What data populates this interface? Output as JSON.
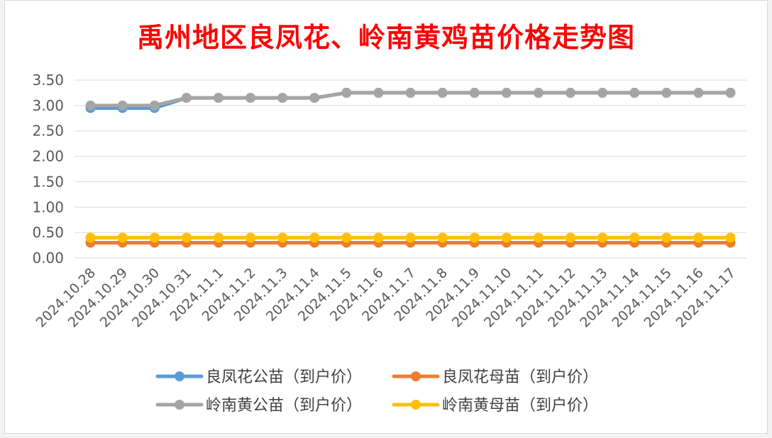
{
  "chart_data": {
    "type": "line",
    "title": "禹州地区良凤花、岭南黄鸡苗价格走势图",
    "x": [
      "2024.10.28",
      "2024.10.29",
      "2024.10.30",
      "2024.10.31",
      "2024.11.1",
      "2024.11.2",
      "2024.11.3",
      "2024.11.4",
      "2024.11.5",
      "2024.11.6",
      "2024.11.7",
      "2024.11.8",
      "2024.11.9",
      "2024.11.10",
      "2024.11.11",
      "2024.11.12",
      "2024.11.13",
      "2024.11.14",
      "2024.11.15",
      "2024.11.16",
      "2024.11.17"
    ],
    "ylim": [
      0,
      3.5
    ],
    "yticks": [
      "0.00",
      "0.50",
      "1.00",
      "1.50",
      "2.00",
      "2.50",
      "3.00",
      "3.50"
    ],
    "grid": true,
    "legend_position": "bottom",
    "series": [
      {
        "name": "良凤花公苗（到户价）",
        "color": "#5b9bd5",
        "values": [
          2.95,
          2.95,
          2.95,
          3.15,
          3.15,
          3.15,
          3.15,
          3.15,
          3.25,
          3.25,
          3.25,
          3.25,
          3.25,
          3.25,
          3.25,
          3.25,
          3.25,
          3.25,
          3.25,
          3.25,
          3.25
        ]
      },
      {
        "name": "良凤花母苗（到户价）",
        "color": "#ed7d31",
        "values": [
          0.3,
          0.3,
          0.3,
          0.3,
          0.3,
          0.3,
          0.3,
          0.3,
          0.3,
          0.3,
          0.3,
          0.3,
          0.3,
          0.3,
          0.3,
          0.3,
          0.3,
          0.3,
          0.3,
          0.3,
          0.3
        ]
      },
      {
        "name": "岭南黄公苗（到户价）",
        "color": "#a5a5a5",
        "values": [
          3.0,
          3.0,
          3.0,
          3.15,
          3.15,
          3.15,
          3.15,
          3.15,
          3.25,
          3.25,
          3.25,
          3.25,
          3.25,
          3.25,
          3.25,
          3.25,
          3.25,
          3.25,
          3.25,
          3.25,
          3.25
        ]
      },
      {
        "name": "岭南黄母苗（到户价）",
        "color": "#ffc000",
        "values": [
          0.4,
          0.4,
          0.4,
          0.4,
          0.4,
          0.4,
          0.4,
          0.4,
          0.4,
          0.4,
          0.4,
          0.4,
          0.4,
          0.4,
          0.4,
          0.4,
          0.4,
          0.4,
          0.4,
          0.4,
          0.4
        ]
      }
    ]
  }
}
